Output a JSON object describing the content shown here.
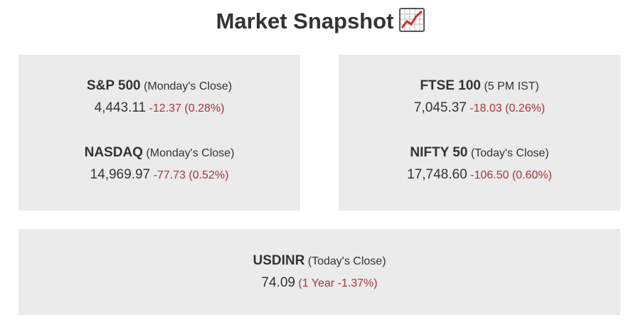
{
  "header": {
    "title": "Market Snapshot"
  },
  "cards": [
    {
      "items": [
        {
          "name": "S&P 500",
          "note": "(Monday's Close)",
          "value": "4,443.11",
          "change": "-12.37 (0.28%)"
        },
        {
          "name": "NASDAQ",
          "note": "(Monday's Close)",
          "value": "14,969.97",
          "change": "-77.73 (0.52%)"
        }
      ]
    },
    {
      "items": [
        {
          "name": "FTSE 100",
          "note": "(5 PM IST)",
          "value": "7,045.37",
          "change": "-18.03 (0.26%)"
        },
        {
          "name": "NIFTY 50",
          "note": "(Today's Close)",
          "value": "17,748.60",
          "change": "-106.50 (0.60%)"
        }
      ]
    },
    {
      "items": [
        {
          "name": "USDINR",
          "note": "(Today's Close)",
          "value": "74.09",
          "change": "(1 Year -1.37%)"
        }
      ]
    }
  ]
}
